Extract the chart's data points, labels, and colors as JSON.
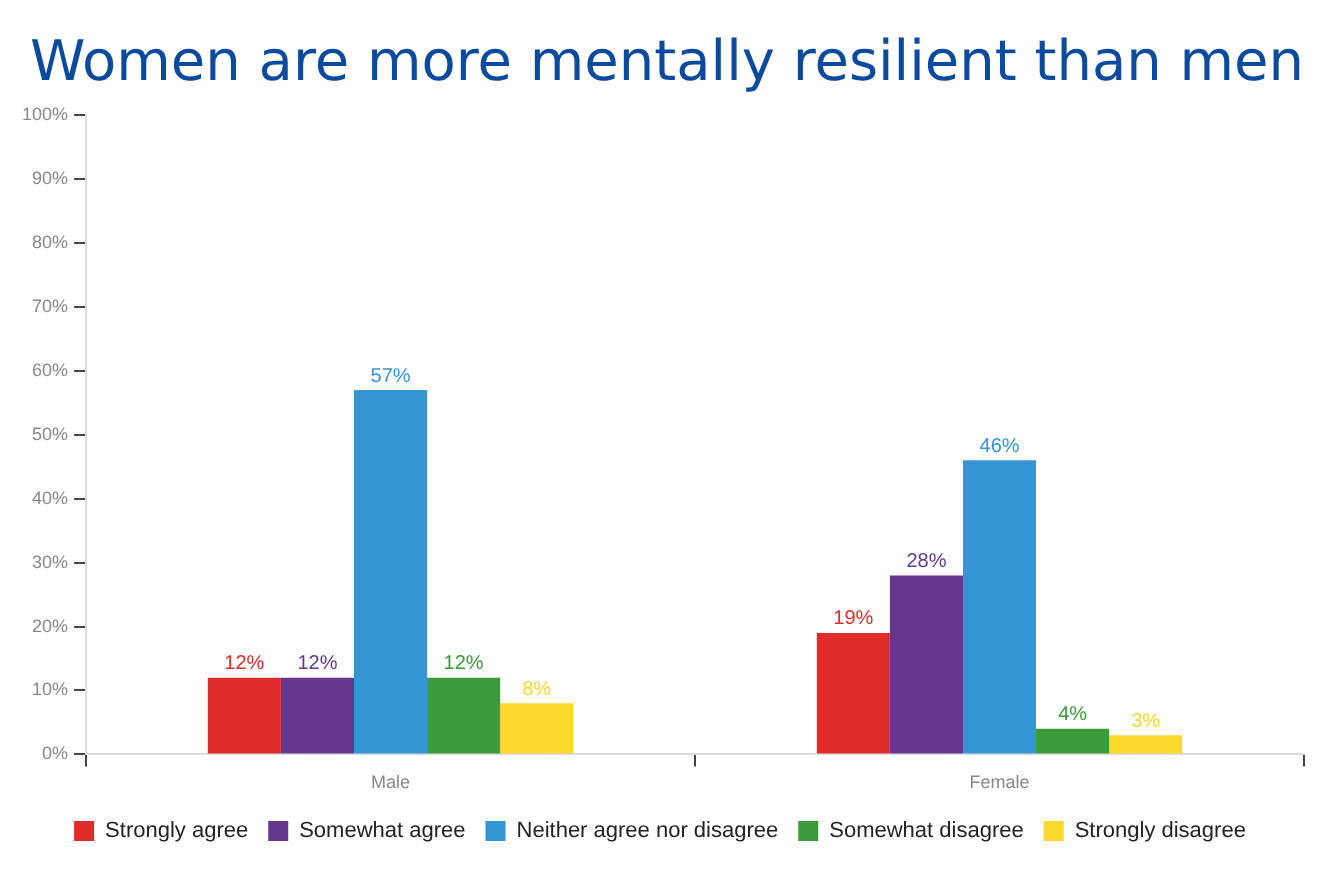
{
  "chart_data": {
    "type": "bar",
    "title": "Women are more mentally resilient than men",
    "categories": [
      "Male",
      "Female"
    ],
    "series": [
      {
        "name": "Strongly agree",
        "color": "#e02b2b",
        "values": [
          12,
          19
        ],
        "value_labels": [
          "12%",
          "19%"
        ]
      },
      {
        "name": "Somewhat agree",
        "color": "#64388f",
        "values": [
          12,
          28
        ],
        "value_labels": [
          "12%",
          "28%"
        ]
      },
      {
        "name": "Neither agree nor disagree",
        "color": "#3596d6",
        "values": [
          57,
          46
        ],
        "value_labels": [
          "57%",
          "46%"
        ]
      },
      {
        "name": "Somewhat disagree",
        "color": "#3b9a3a",
        "values": [
          12,
          4
        ],
        "value_labels": [
          "12%",
          "4%"
        ]
      },
      {
        "name": "Strongly disagree",
        "color": "#fcd82a",
        "values": [
          8,
          3
        ],
        "value_labels": [
          "8%",
          "3%"
        ]
      }
    ],
    "ylim": [
      0,
      100
    ],
    "yticks": [
      {
        "value": 0,
        "label": "0%"
      },
      {
        "value": 10,
        "label": "10%"
      },
      {
        "value": 20,
        "label": "20%"
      },
      {
        "value": 30,
        "label": "30%"
      },
      {
        "value": 40,
        "label": "40%"
      },
      {
        "value": 50,
        "label": "50%"
      },
      {
        "value": 60,
        "label": "60%"
      },
      {
        "value": 70,
        "label": "70%"
      },
      {
        "value": 80,
        "label": "80%"
      },
      {
        "value": 90,
        "label": "90%"
      },
      {
        "value": 100,
        "label": "100%"
      }
    ],
    "grid": false,
    "legend": "bottom"
  }
}
